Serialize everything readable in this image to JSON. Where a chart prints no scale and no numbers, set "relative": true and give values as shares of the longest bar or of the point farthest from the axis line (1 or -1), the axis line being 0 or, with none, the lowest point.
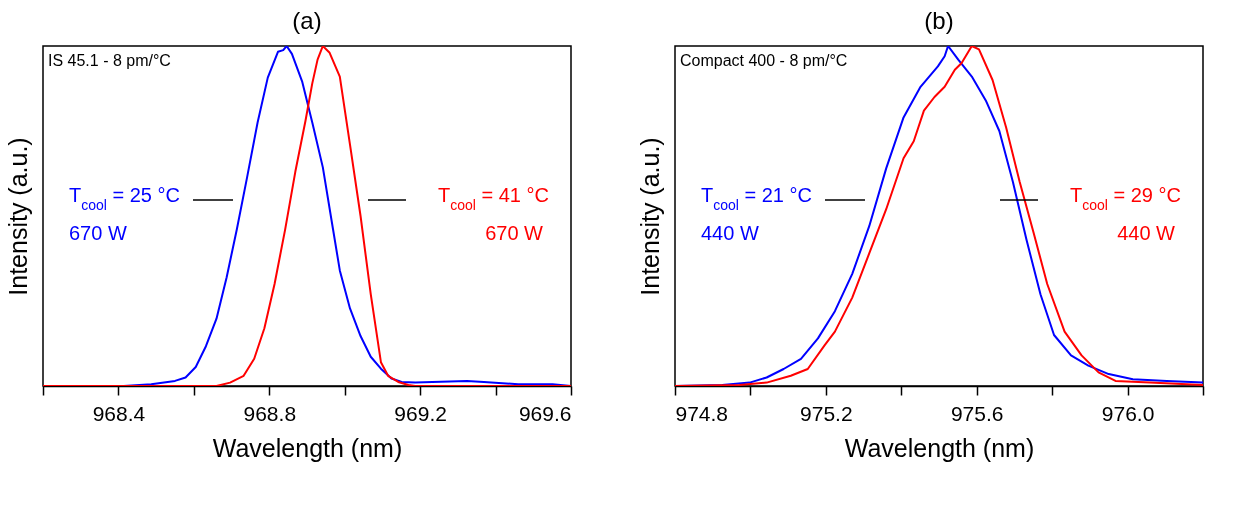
{
  "chart_data": [
    {
      "type": "line",
      "title": "(a)",
      "xlabel": "Wavelength (nm)",
      "ylabel": "Intensity (a.u.)",
      "relative": true,
      "xlim": [
        968.2,
        969.6
      ],
      "xticks": [
        {
          "value": 968.2,
          "label": null
        },
        968.4,
        {
          "value": 968.6,
          "label": null
        },
        968.8,
        {
          "value": 969.0,
          "label": null
        },
        969.2,
        {
          "value": 969.4,
          "label": null
        },
        969.6
      ],
      "series": [
        {
          "color": "#0000ff",
          "x": [
            968.2,
            968.414,
            968.487,
            968.55,
            968.578,
            968.605,
            968.632,
            968.66,
            968.687,
            968.714,
            968.741,
            968.769,
            968.796,
            968.823,
            968.837,
            968.846,
            968.86,
            968.887,
            968.914,
            968.942,
            968.969,
            968.987,
            969.014,
            969.042,
            969.069,
            969.096,
            969.124,
            969.151,
            969.187,
            969.278,
            969.324,
            969.369,
            969.46,
            969.551,
            969.6
          ],
          "values": [
            0,
            0,
            0.005,
            0.015,
            0.025,
            0.056,
            0.117,
            0.198,
            0.32,
            0.461,
            0.613,
            0.775,
            0.907,
            0.983,
            0.988,
            1,
            0.977,
            0.896,
            0.775,
            0.643,
            0.461,
            0.34,
            0.228,
            0.147,
            0.086,
            0.051,
            0.022,
            0.012,
            0.01,
            0.013,
            0.015,
            0.012,
            0.005,
            0.005,
            0
          ]
        },
        {
          "color": "#ff0000",
          "x": [
            968.2,
            968.66,
            968.696,
            968.732,
            968.76,
            968.787,
            968.814,
            968.842,
            968.869,
            968.896,
            968.914,
            968.928,
            968.942,
            968.96,
            968.987,
            969.014,
            969.042,
            969.069,
            969.096,
            969.115,
            969.142,
            969.169,
            969.187,
            969.6
          ],
          "values": [
            0,
            0,
            0.01,
            0.03,
            0.08,
            0.17,
            0.3,
            0.46,
            0.63,
            0.78,
            0.89,
            0.96,
            1,
            0.98,
            0.91,
            0.71,
            0.5,
            0.27,
            0.07,
            0.03,
            0.012,
            0.003,
            0,
            0
          ]
        }
      ],
      "annotations": [
        "IS 45.1 - 8 pm/°C",
        "T$_{cool}$ = 25 °C\n670 W",
        "T$_{cool}$ = 41 °C\n670 W"
      ]
    },
    {
      "type": "line",
      "title": "(b)",
      "xlabel": "Wavelength (nm)",
      "ylabel": "Intensity (a.u.)",
      "relative": true,
      "xlim": [
        974.8,
        976.2
      ],
      "xticks": [
        974.8,
        {
          "value": 975.0,
          "label": null
        },
        975.2,
        {
          "value": 975.4,
          "label": null
        },
        975.6,
        {
          "value": 975.8,
          "label": null
        },
        {
          "value": 976.0,
          "label": "976.0"
        },
        {
          "value": 976.2,
          "label": null
        }
      ],
      "series": [
        {
          "color": "#0000ff",
          "x": [
            974.8,
            974.925,
            974.998,
            975.043,
            975.088,
            975.134,
            975.179,
            975.224,
            975.27,
            975.315,
            975.36,
            975.406,
            975.451,
            975.497,
            975.515,
            975.524,
            975.551,
            975.587,
            975.624,
            975.66,
            975.696,
            975.732,
            975.769,
            975.805,
            975.85,
            975.896,
            975.95,
            976.014,
            976.104,
            976.2
          ],
          "values": [
            0,
            0.003,
            0.01,
            0.025,
            0.05,
            0.08,
            0.14,
            0.22,
            0.33,
            0.47,
            0.64,
            0.79,
            0.88,
            0.94,
            0.97,
            1,
            0.96,
            0.91,
            0.84,
            0.75,
            0.6,
            0.43,
            0.27,
            0.15,
            0.09,
            0.06,
            0.035,
            0.02,
            0.015,
            0.01
          ]
        },
        {
          "color": "#ff0000",
          "x": [
            974.8,
            974.971,
            975.043,
            975.107,
            975.152,
            975.197,
            975.224,
            975.27,
            975.315,
            975.36,
            975.406,
            975.433,
            975.46,
            975.488,
            975.515,
            975.542,
            975.56,
            975.587,
            975.606,
            975.642,
            975.678,
            975.714,
            975.751,
            975.787,
            975.833,
            975.878,
            975.923,
            975.968,
            976.059,
            976.2
          ],
          "values": [
            0,
            0.003,
            0.01,
            0.03,
            0.05,
            0.12,
            0.16,
            0.26,
            0.39,
            0.52,
            0.67,
            0.72,
            0.81,
            0.85,
            0.88,
            0.93,
            0.95,
            1,
            0.99,
            0.9,
            0.76,
            0.6,
            0.45,
            0.3,
            0.16,
            0.09,
            0.04,
            0.015,
            0.01,
            0.003
          ]
        }
      ],
      "annotations": [
        "Compact 400 - 8 pm/°C",
        "T$_{cool}$ = 21 °C\n440 W",
        "T$_{cool}$ = 29 °C\n440 W"
      ]
    }
  ]
}
